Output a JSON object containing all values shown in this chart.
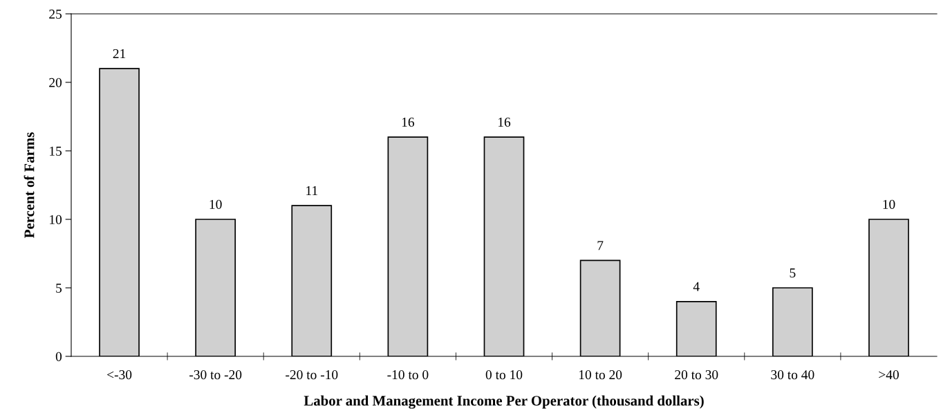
{
  "chart_data": {
    "type": "bar",
    "xlabel": "Labor and Management Income Per Operator (thousand dollars)",
    "ylabel": "Percent of Farms",
    "categories": [
      "<-30",
      "-30 to -20",
      "-20 to -10",
      "-10 to 0",
      "0 to 10",
      "10 to 20",
      "20 to 30",
      "30 to 40",
      ">40"
    ],
    "values": [
      21,
      10,
      11,
      16,
      16,
      7,
      4,
      5,
      10
    ],
    "color": "#d0d0d0",
    "ylim": [
      0,
      25
    ],
    "yticks": [
      0,
      5,
      10,
      15,
      20,
      25
    ],
    "data_labels": true,
    "grid": false,
    "legend": false
  }
}
